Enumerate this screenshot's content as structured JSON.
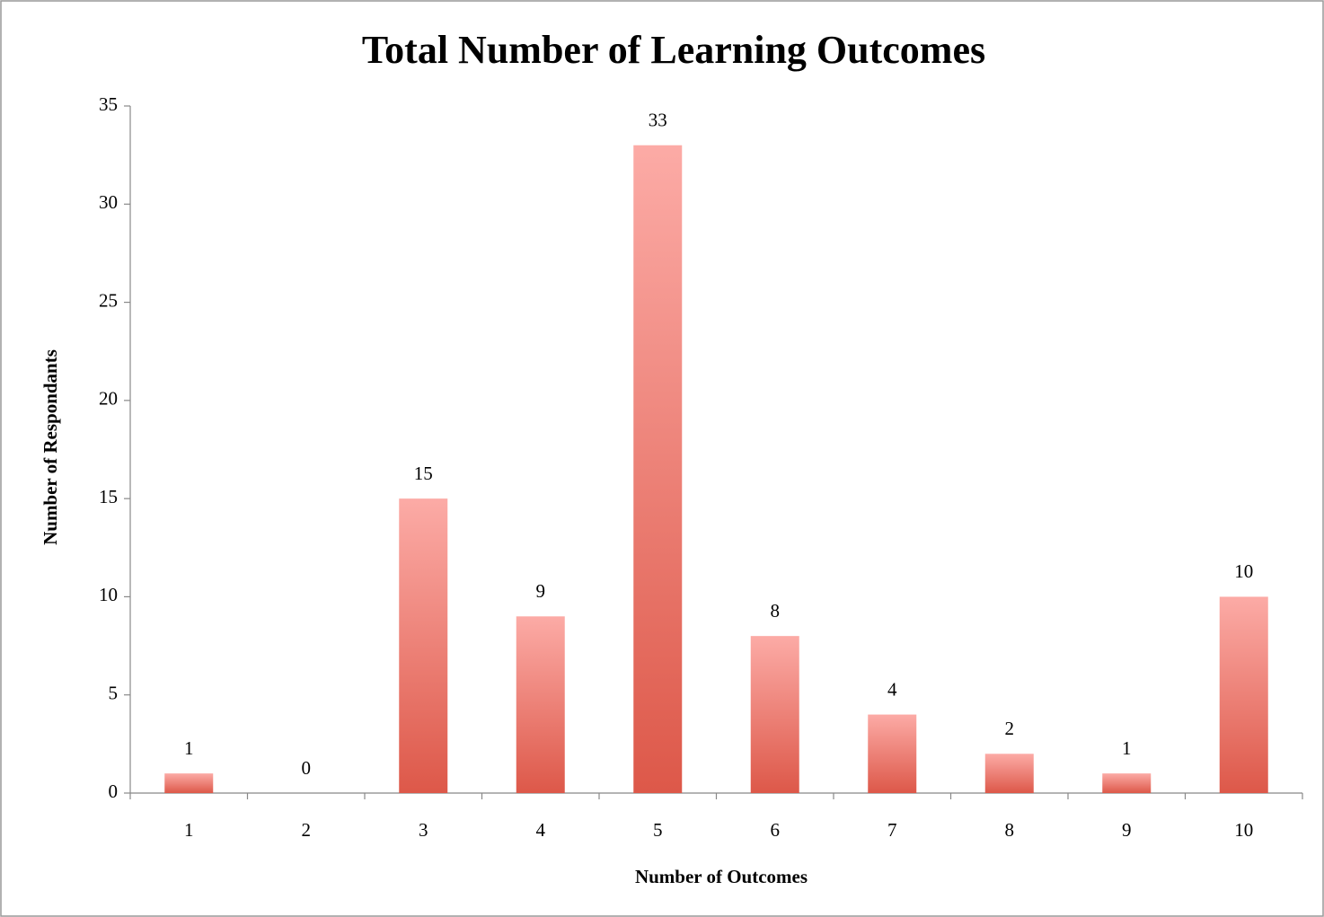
{
  "chart_data": {
    "type": "bar",
    "title": "Total Number of Learning Outcomes",
    "x_label": "Number of Outcomes",
    "y_label": "Number of Respondants",
    "categories": [
      "1",
      "2",
      "3",
      "4",
      "5",
      "6",
      "7",
      "8",
      "9",
      "10"
    ],
    "values": [
      1,
      0,
      15,
      9,
      33,
      8,
      4,
      2,
      1,
      10
    ],
    "gradient": [
      "#fcaba6",
      "#dd5849"
    ],
    "ylim": [
      0,
      35
    ],
    "yticks": [
      0,
      5,
      10,
      15,
      20,
      25,
      30,
      35
    ],
    "grid": false
  }
}
